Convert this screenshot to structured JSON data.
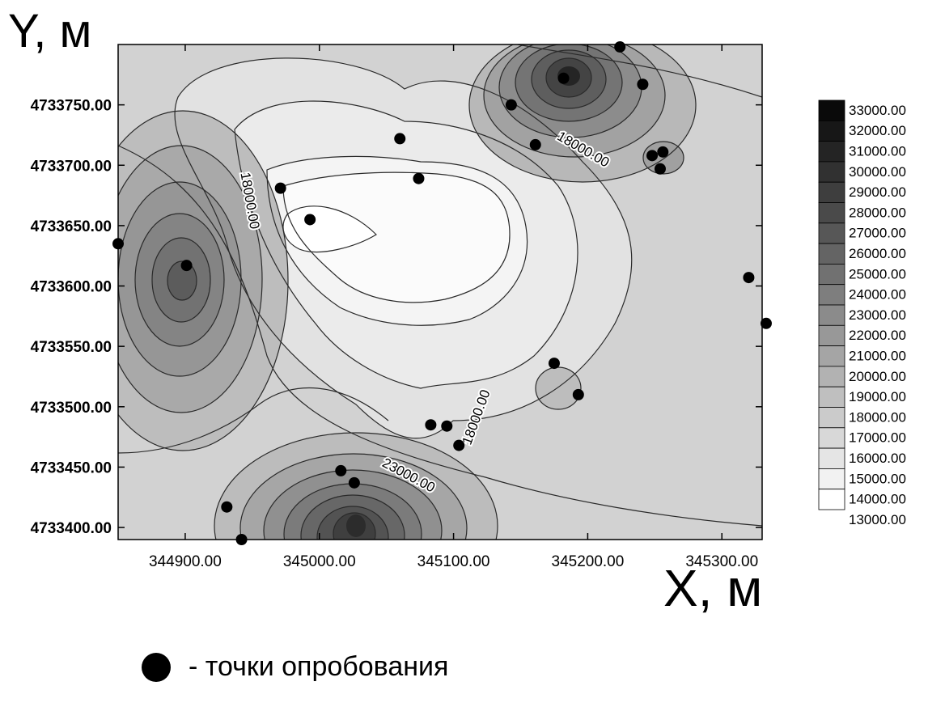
{
  "chart_data": {
    "type": "contour",
    "title": "",
    "xlabel": "X, м",
    "ylabel": "Y, м",
    "xlim": [
      344850,
      345330
    ],
    "ylim": [
      4733390,
      4733800
    ],
    "x_ticks": [
      344900,
      345000,
      345100,
      345200,
      345300
    ],
    "x_tick_labels": [
      "344900.00",
      "345000.00",
      "345100.00",
      "345200.00",
      "345300.00"
    ],
    "y_ticks": [
      4733400,
      4733450,
      4733500,
      4733550,
      4733600,
      4733650,
      4733700,
      4733750
    ],
    "y_tick_labels": [
      "4733400.00",
      "4733450.00",
      "4733500.00",
      "4733550.00",
      "4733600.00",
      "4733650.00",
      "4733700.00",
      "4733750.00"
    ],
    "color_scale": {
      "levels": [
        33000,
        32000,
        31000,
        30000,
        29000,
        28000,
        27000,
        26000,
        25000,
        24000,
        23000,
        22000,
        21000,
        20000,
        19000,
        18000,
        17000,
        16000,
        15000,
        14000,
        13000
      ],
      "labels": [
        "33000.00",
        "32000.00",
        "31000.00",
        "30000.00",
        "29000.00",
        "28000.00",
        "27000.00",
        "26000.00",
        "25000.00",
        "24000.00",
        "23000.00",
        "22000.00",
        "21000.00",
        "20000.00",
        "19000.00",
        "18000.00",
        "17000.00",
        "16000.00",
        "15000.00",
        "14000.00",
        "13000.00"
      ],
      "high_color": "#0a0a0a",
      "low_color": "#ffffff"
    },
    "contour_labels": [
      {
        "text": "18000.00",
        "x": 344945,
        "y": 4733670
      },
      {
        "text": "18000.00",
        "x": 345195,
        "y": 4733710
      },
      {
        "text": "18000.00",
        "x": 345120,
        "y": 4733490
      },
      {
        "text": "23000.00",
        "x": 345065,
        "y": 4733440
      }
    ],
    "sample_points": [
      {
        "x": 345224,
        "y": 4733798
      },
      {
        "x": 345182,
        "y": 4733772
      },
      {
        "x": 345241,
        "y": 4733767
      },
      {
        "x": 345143,
        "y": 4733750
      },
      {
        "x": 345060,
        "y": 4733722
      },
      {
        "x": 345161,
        "y": 4733717
      },
      {
        "x": 345248,
        "y": 4733708
      },
      {
        "x": 345256,
        "y": 4733711
      },
      {
        "x": 345254,
        "y": 4733697
      },
      {
        "x": 345074,
        "y": 4733689
      },
      {
        "x": 344971,
        "y": 4733681
      },
      {
        "x": 344993,
        "y": 4733655
      },
      {
        "x": 344850,
        "y": 4733635
      },
      {
        "x": 344901,
        "y": 4733617
      },
      {
        "x": 345320,
        "y": 4733607
      },
      {
        "x": 345333,
        "y": 4733569
      },
      {
        "x": 345175,
        "y": 4733536
      },
      {
        "x": 345193,
        "y": 4733510
      },
      {
        "x": 345083,
        "y": 4733485
      },
      {
        "x": 345095,
        "y": 4733484
      },
      {
        "x": 345104,
        "y": 4733468
      },
      {
        "x": 345016,
        "y": 4733447
      },
      {
        "x": 345026,
        "y": 4733437
      },
      {
        "x": 344931,
        "y": 4733417
      },
      {
        "x": 344942,
        "y": 4733390
      }
    ],
    "legend_note": "- точки опробования"
  }
}
